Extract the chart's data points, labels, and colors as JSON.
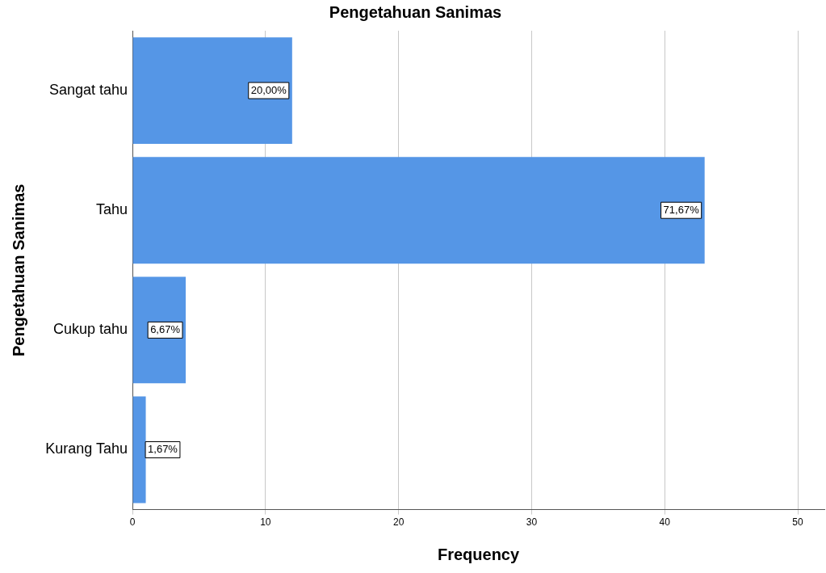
{
  "chart_data": {
    "type": "bar",
    "orientation": "horizontal",
    "title": "Pengetahuan Sanimas",
    "xlabel": "Frequency",
    "ylabel": "Pengetahuan Sanimas",
    "categories": [
      "Sangat tahu",
      "Tahu",
      "Cukup tahu",
      "Kurang Tahu"
    ],
    "values": [
      12,
      43,
      4,
      1
    ],
    "color": "#5596e6",
    "annotations": [
      {
        "text": "20,00%",
        "x": 12,
        "y": "Sangat tahu"
      },
      {
        "text": "71,67%",
        "x": 43,
        "y": "Tahu"
      },
      {
        "text": "6,67%",
        "x": 4,
        "y": "Cukup tahu"
      },
      {
        "text": "1,67%",
        "x": 1,
        "y": "Kurang Tahu"
      }
    ],
    "xlim": [
      0,
      52
    ],
    "xticks": [
      0,
      10,
      20,
      30,
      40,
      50
    ],
    "grid": "x",
    "legend": false
  }
}
